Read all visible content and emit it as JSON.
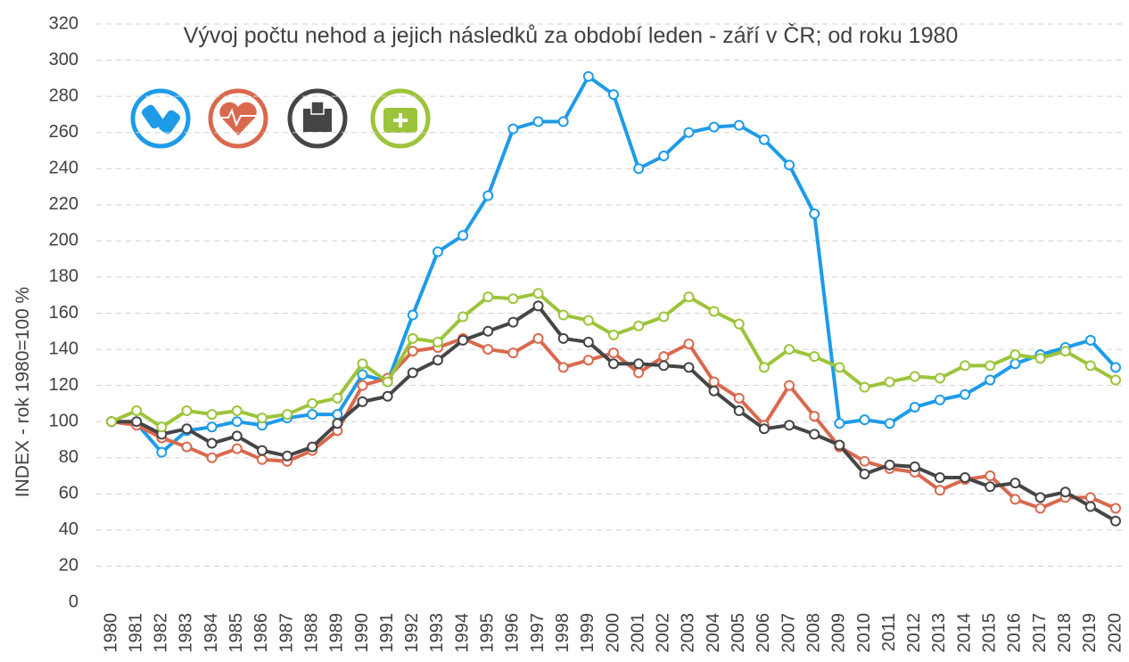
{
  "chart_data": {
    "type": "line",
    "title": "Vývoj  počtu nehod a jejich následků za období leden - září v ČR; od roku 1980",
    "y_label": "INDEX - rok 1980=100 %",
    "categories": [
      "1980",
      "1981",
      "1982",
      "1983",
      "1984",
      "1985",
      "1986",
      "1987",
      "1988",
      "1989",
      "1990",
      "1991",
      "1992",
      "1993",
      "1994",
      "1995",
      "1996",
      "1997",
      "1998",
      "1999",
      "2000",
      "2001",
      "2002",
      "2003",
      "2004",
      "2005",
      "2006",
      "2007",
      "2008",
      "2009",
      "2010",
      "2011",
      "2012",
      "2013",
      "2014",
      "2015",
      "2016",
      "2017",
      "2018",
      "2019",
      "2020"
    ],
    "series": [
      {
        "color": "#1e9be8",
        "values": [
          100,
          99,
          83,
          95,
          97,
          100,
          98,
          102,
          104,
          104,
          126,
          122,
          159,
          194,
          203,
          225,
          262,
          266,
          266,
          291,
          281,
          240,
          247,
          260,
          263,
          264,
          256,
          242,
          215,
          99,
          101,
          99,
          108,
          112,
          115,
          123,
          132,
          137,
          141,
          145,
          130
        ]
      },
      {
        "color": "#d9694e",
        "values": [
          100,
          98,
          91,
          86,
          80,
          85,
          79,
          78,
          84,
          95,
          120,
          124,
          139,
          141,
          146,
          140,
          138,
          146,
          130,
          134,
          138,
          127,
          136,
          143,
          122,
          113,
          98,
          120,
          103,
          86,
          78,
          74,
          72,
          62,
          68,
          70,
          57,
          52,
          58,
          58,
          52
        ]
      },
      {
        "color": "#454545",
        "values": [
          100,
          100,
          93,
          96,
          88,
          92,
          84,
          81,
          86,
          99,
          111,
          114,
          127,
          134,
          145,
          150,
          155,
          164,
          146,
          144,
          132,
          132,
          131,
          130,
          117,
          106,
          96,
          98,
          93,
          87,
          71,
          76,
          75,
          69,
          69,
          64,
          66,
          58,
          61,
          53,
          45
        ]
      },
      {
        "color": "#9cc43a",
        "values": [
          100,
          106,
          97,
          106,
          104,
          106,
          102,
          104,
          110,
          113,
          132,
          122,
          146,
          144,
          158,
          169,
          168,
          171,
          159,
          156,
          148,
          153,
          158,
          169,
          161,
          154,
          130,
          140,
          136,
          130,
          119,
          122,
          125,
          124,
          131,
          131,
          137,
          135,
          139,
          131,
          123
        ]
      }
    ],
    "ylim": [
      0,
      320
    ],
    "yticks": [
      0,
      20,
      40,
      60,
      80,
      100,
      120,
      140,
      160,
      180,
      200,
      220,
      240,
      260,
      280,
      300,
      320
    ],
    "grid": true
  }
}
